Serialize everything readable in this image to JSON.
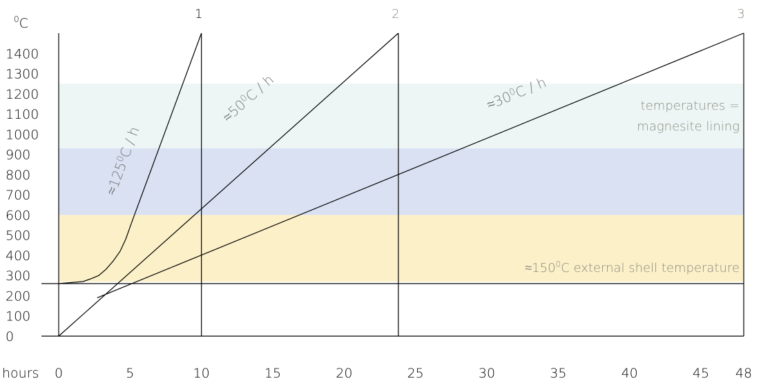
{
  "chart_data": {
    "type": "line",
    "title": "",
    "xlabel": "hours",
    "ylabel": "°C",
    "ylabel_sup": "0",
    "ylabel_unit": "C",
    "xlim": [
      0,
      48
    ],
    "ylim": [
      0,
      1500
    ],
    "x_ticks": [
      {
        "value": 0,
        "label": "0"
      },
      {
        "value": 5,
        "label": "5"
      },
      {
        "value": 10,
        "label": "10"
      },
      {
        "value": 15,
        "label": "15"
      },
      {
        "value": 20,
        "label": "20"
      },
      {
        "value": 25,
        "label": "25"
      },
      {
        "value": 30,
        "label": "30"
      },
      {
        "value": 35,
        "label": "35"
      },
      {
        "value": 40,
        "label": "40"
      },
      {
        "value": 45,
        "label": "45"
      },
      {
        "value": 48,
        "label": "48"
      }
    ],
    "y_ticks": [
      {
        "value": 0,
        "label": "0"
      },
      {
        "value": 100,
        "label": "100"
      },
      {
        "value": 200,
        "label": "200"
      },
      {
        "value": 300,
        "label": "300"
      },
      {
        "value": 400,
        "label": "400"
      },
      {
        "value": 500,
        "label": "500"
      },
      {
        "value": 600,
        "label": "600"
      },
      {
        "value": 700,
        "label": "700"
      },
      {
        "value": 800,
        "label": "800"
      },
      {
        "value": 900,
        "label": "900"
      },
      {
        "value": 1000,
        "label": "1000"
      },
      {
        "value": 1100,
        "label": "1100"
      },
      {
        "value": 1200,
        "label": "1200"
      },
      {
        "value": 1300,
        "label": "1300"
      },
      {
        "value": 1400,
        "label": "1400"
      }
    ],
    "bands": [
      {
        "y0": 270,
        "y1": 600,
        "color": "#fcf0c8",
        "label": "≈150°C external shell temperature",
        "label_main": "≈150",
        "label_sup": "0",
        "label_rest": "C external shell temperature"
      },
      {
        "y0": 600,
        "y1": 930,
        "color": "#d9e1f2",
        "label": ""
      },
      {
        "y0": 930,
        "y1": 1250,
        "color": "#eef6f5",
        "label_lines": [
          "temperatures =",
          "magnesite lining"
        ]
      }
    ],
    "reference_line": {
      "y": 260
    },
    "phases": [
      {
        "x": 10,
        "label": "1",
        "color": "#000000"
      },
      {
        "x": 23.8,
        "label": "2",
        "color": "#8a8a80"
      },
      {
        "x": 48,
        "label": "3",
        "color": "#8a8a80"
      }
    ],
    "series": [
      {
        "label": "≈125°C / h",
        "label_main": "≈125",
        "label_sup": "0",
        "label_rest": "C / h",
        "label_anchor": {
          "x": 4.8,
          "y": 860
        },
        "points": [
          [
            0,
            260
          ],
          [
            1.7,
            270
          ],
          [
            2.3,
            285
          ],
          [
            2.8,
            300
          ],
          [
            3.3,
            330
          ],
          [
            3.8,
            370
          ],
          [
            4.3,
            420
          ],
          [
            4.7,
            480
          ],
          [
            5.1,
            560
          ],
          [
            10,
            1500
          ]
        ]
      },
      {
        "label": "≈50°C / h",
        "label_main": "≈50",
        "label_sup": "0",
        "label_rest": "C / h",
        "label_anchor": {
          "x": 13.5,
          "y": 1160
        },
        "points": [
          [
            0,
            0
          ],
          [
            23.8,
            1500
          ]
        ]
      },
      {
        "label": "≈30°C / h",
        "label_main": "≈30",
        "label_sup": "0",
        "label_rest": "C / h",
        "label_anchor": {
          "x": 32.2,
          "y": 1180
        },
        "points": [
          [
            2.7,
            190
          ],
          [
            48,
            1500
          ]
        ]
      }
    ]
  }
}
